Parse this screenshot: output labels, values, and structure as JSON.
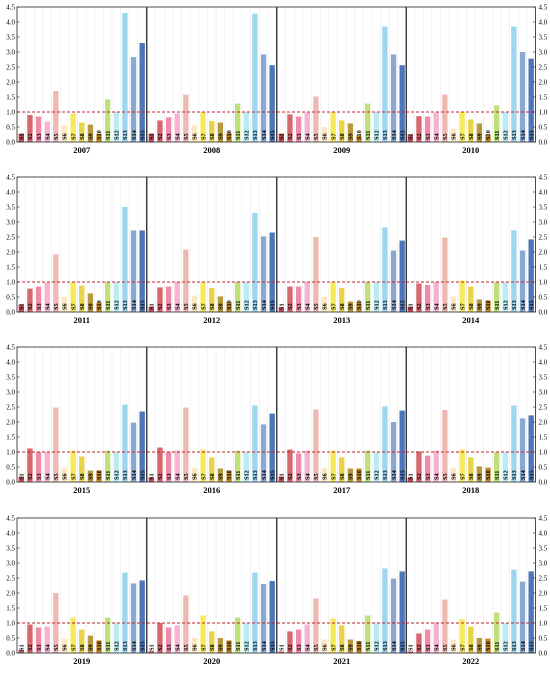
{
  "chart_data": {
    "type": "bar",
    "ylim": [
      0,
      4.5
    ],
    "yticks": [
      "0.0",
      "0.5",
      "1.0",
      "1.5",
      "2.0",
      "2.5",
      "3.0",
      "3.5",
      "4.0",
      "4.5"
    ],
    "categories": [
      "S1",
      "S2",
      "S3",
      "S4",
      "S5",
      "S6",
      "S7",
      "S8",
      "S9",
      "S10",
      "S11",
      "S12",
      "S13",
      "S14",
      "S15"
    ],
    "reference_line": 1.0,
    "grid": false,
    "bar_colors": [
      "#c94b5b",
      "#d7676f",
      "#f08aa9",
      "#f6b2cf",
      "#efb9b3",
      "#fde7c0",
      "#f7ea5a",
      "#e9d347",
      "#b89a3c",
      "#c68a24",
      "#bfe07a",
      "#b8ecf2",
      "#9ed6f0",
      "#89a8d2",
      "#4d77b7"
    ],
    "panels": [
      {
        "year": "2007",
        "values": [
          0.28,
          0.9,
          0.85,
          0.68,
          1.7,
          0.55,
          0.95,
          0.65,
          0.58,
          0.28,
          1.42,
          1.0,
          4.3,
          2.83,
          3.3
        ]
      },
      {
        "year": "2008",
        "values": [
          0.28,
          0.72,
          0.82,
          0.95,
          1.58,
          0.55,
          1.0,
          0.7,
          0.65,
          0.3,
          1.28,
          1.0,
          4.28,
          2.92,
          2.56
        ]
      },
      {
        "year": "2009",
        "values": [
          0.28,
          0.92,
          0.85,
          0.98,
          1.52,
          0.5,
          1.0,
          0.72,
          0.62,
          0.22,
          1.28,
          1.0,
          3.85,
          2.92,
          2.56
        ]
      },
      {
        "year": "2010",
        "values": [
          0.25,
          0.86,
          0.85,
          0.98,
          1.58,
          0.45,
          1.0,
          0.75,
          0.62,
          0.25,
          1.22,
          1.0,
          3.85,
          3.0,
          2.78
        ]
      },
      {
        "year": "2011",
        "values": [
          0.25,
          0.78,
          0.85,
          0.98,
          1.92,
          0.5,
          1.0,
          0.88,
          0.62,
          0.3,
          1.0,
          1.0,
          3.5,
          2.72,
          2.72
        ]
      },
      {
        "year": "2012",
        "values": [
          0.18,
          0.82,
          0.85,
          1.0,
          2.08,
          0.55,
          1.0,
          0.8,
          0.52,
          0.32,
          1.0,
          1.0,
          3.3,
          2.52,
          2.65
        ]
      },
      {
        "year": "2013",
        "values": [
          0.15,
          0.85,
          0.85,
          1.0,
          2.5,
          0.5,
          1.0,
          0.8,
          0.35,
          0.32,
          1.0,
          1.0,
          2.82,
          2.05,
          2.38
        ]
      },
      {
        "year": "2014",
        "values": [
          0.18,
          0.95,
          0.9,
          1.0,
          2.48,
          0.52,
          1.05,
          0.85,
          0.42,
          0.38,
          1.0,
          1.0,
          2.72,
          2.05,
          2.42
        ]
      },
      {
        "year": "2015",
        "values": [
          0.18,
          1.12,
          1.0,
          1.0,
          2.48,
          0.48,
          1.05,
          0.85,
          0.38,
          0.38,
          1.05,
          1.0,
          2.58,
          1.98,
          2.35
        ]
      },
      {
        "year": "2016",
        "values": [
          0.15,
          1.15,
          1.0,
          1.05,
          2.48,
          0.48,
          1.08,
          0.82,
          0.45,
          0.38,
          1.05,
          1.0,
          2.55,
          1.92,
          2.28
        ]
      },
      {
        "year": "2017",
        "values": [
          0.18,
          1.08,
          0.95,
          1.05,
          2.42,
          0.48,
          1.05,
          0.82,
          0.45,
          0.45,
          1.05,
          1.0,
          2.52,
          2.0,
          2.38
        ]
      },
      {
        "year": "2018",
        "values": [
          0.15,
          1.02,
          0.88,
          1.05,
          2.4,
          0.48,
          1.08,
          0.82,
          0.52,
          0.48,
          1.0,
          1.0,
          2.55,
          2.12,
          2.22
        ]
      },
      {
        "year": "2019",
        "values": [
          0.1,
          0.95,
          0.85,
          0.88,
          2.0,
          0.48,
          1.18,
          0.78,
          0.58,
          0.42,
          1.18,
          1.0,
          2.68,
          2.32,
          2.42
        ]
      },
      {
        "year": "2020",
        "values": [
          0.06,
          1.0,
          0.85,
          0.92,
          1.92,
          0.5,
          1.25,
          0.72,
          0.5,
          0.42,
          1.18,
          1.0,
          2.68,
          2.3,
          2.4
        ]
      },
      {
        "year": "2021",
        "values": [
          0.05,
          0.72,
          0.78,
          0.95,
          1.82,
          0.45,
          1.15,
          0.92,
          0.45,
          0.4,
          1.25,
          1.0,
          2.82,
          2.48,
          2.72
        ]
      },
      {
        "year": "2022",
        "values": [
          0.05,
          0.65,
          0.78,
          1.02,
          1.78,
          0.45,
          1.12,
          0.88,
          0.5,
          0.48,
          1.35,
          1.0,
          2.78,
          2.38,
          2.72
        ]
      }
    ]
  }
}
